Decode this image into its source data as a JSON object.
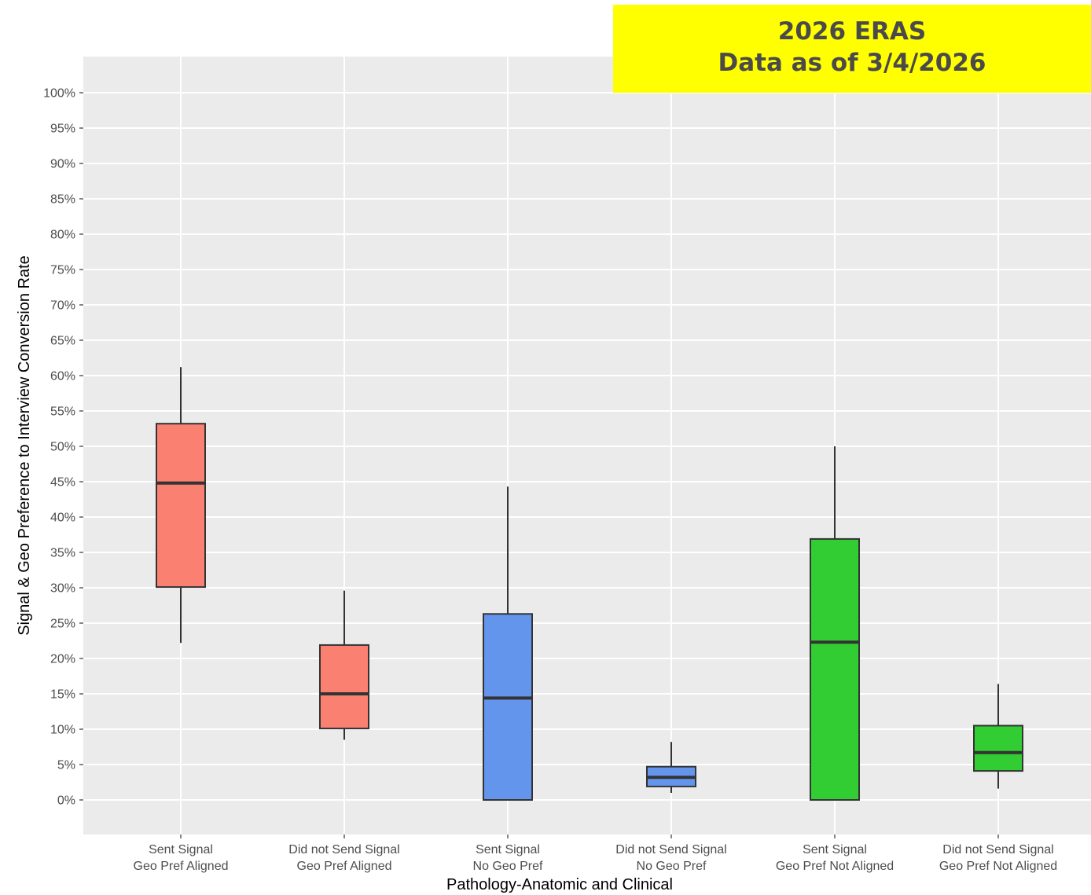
{
  "banner": {
    "line1": "2026 ERAS",
    "line2": "Data as of 3/4/2026"
  },
  "chart_data": {
    "type": "boxplot",
    "xlabel": "Pathology-Anatomic and Clinical",
    "ylabel": "Signal & Geo Preference to Interview Conversion Rate",
    "ylim": [
      0,
      100
    ],
    "yticks": [
      "0%",
      "5%",
      "10%",
      "15%",
      "20%",
      "25%",
      "30%",
      "35%",
      "40%",
      "45%",
      "50%",
      "55%",
      "60%",
      "65%",
      "70%",
      "75%",
      "80%",
      "85%",
      "90%",
      "95%",
      "100%"
    ],
    "grid": true,
    "legend": "none",
    "categories": [
      {
        "line1": "Sent Signal",
        "line2": "Geo Pref Aligned",
        "color": "#fa8072",
        "min": 22.2,
        "q1": 30.1,
        "median": 44.8,
        "q3": 53.2,
        "max": 61.2
      },
      {
        "line1": "Did not Send Signal",
        "line2": "Geo Pref Aligned",
        "color": "#fa8072",
        "min": 8.5,
        "q1": 10.1,
        "median": 15.0,
        "q3": 21.9,
        "max": 29.6
      },
      {
        "line1": "Sent Signal",
        "line2": "No Geo Pref",
        "color": "#6495ed",
        "min": 0.0,
        "q1": 0.0,
        "median": 14.4,
        "q3": 26.3,
        "max": 44.3
      },
      {
        "line1": "Did not Send Signal",
        "line2": "No Geo Pref",
        "color": "#6495ed",
        "min": 1.0,
        "q1": 1.9,
        "median": 3.2,
        "q3": 4.7,
        "max": 8.2
      },
      {
        "line1": "Sent Signal",
        "line2": "Geo Pref Not Aligned",
        "color": "#32cd32",
        "min": 0.0,
        "q1": 0.0,
        "median": 22.3,
        "q3": 36.9,
        "max": 50.0
      },
      {
        "line1": "Did not Send Signal",
        "line2": "Geo Pref Not Aligned",
        "color": "#32cd32",
        "min": 1.6,
        "q1": 4.1,
        "median": 6.7,
        "q3": 10.5,
        "max": 16.4
      }
    ]
  }
}
